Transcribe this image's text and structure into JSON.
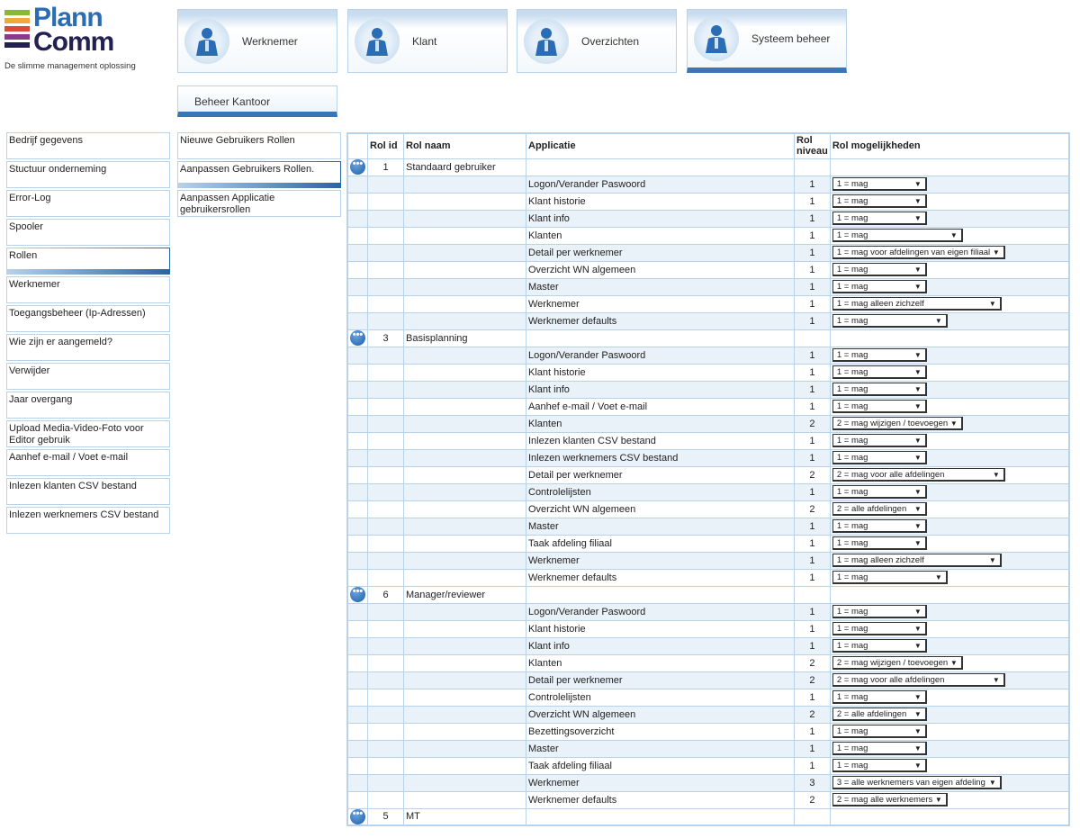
{
  "logo": {
    "text_top": "Plann",
    "text_bottom": "Comm",
    "tagline": "De slimme management oplossing",
    "colors": [
      "#8ab833",
      "#f2a640",
      "#d94a3a",
      "#8a3a8c",
      "#232052"
    ]
  },
  "nav": [
    {
      "label": "Werknemer",
      "icon": "employee-calculator-icon"
    },
    {
      "label": "Klant",
      "icon": "client-icon"
    },
    {
      "label": "Overzichten",
      "icon": "overview-icon"
    },
    {
      "label": "Systeem beheer",
      "icon": "system-key-icon",
      "selected": true
    }
  ],
  "subnav": {
    "label": "Beheer Kantoor"
  },
  "menu_left": [
    {
      "label": "Bedrijf gegevens"
    },
    {
      "label": "Stuctuur onderneming"
    },
    {
      "label": "Error-Log"
    },
    {
      "label": "Spooler"
    },
    {
      "label": "Rollen",
      "selected": true
    },
    {
      "label": "Werknemer"
    },
    {
      "label": "Toegangsbeheer (Ip-Adressen)"
    },
    {
      "label": "Wie zijn er aangemeld?"
    },
    {
      "label": "Verwijder"
    },
    {
      "label": "Jaar overgang"
    },
    {
      "label": "Upload Media-Video-Foto voor Editor gebruik"
    },
    {
      "label": "Aanhef e-mail / Voet e-mail"
    },
    {
      "label": "Inlezen klanten CSV bestand"
    },
    {
      "label": "Inlezen werknemers CSV bestand"
    }
  ],
  "menu_sub": [
    {
      "label": "Nieuwe Gebruikers Rollen"
    },
    {
      "label": "Aanpassen Gebruikers Rollen.",
      "selected": true
    },
    {
      "label": "Aanpassen Applicatie gebruikersrollen"
    }
  ],
  "table": {
    "headers": {
      "id": "Rol id",
      "name": "Rol naam",
      "app": "Applicatie",
      "level": "Rol niveau",
      "options": "Rol mogelijkheden"
    },
    "accent": "#3a76b6",
    "groups": [
      {
        "id": "1",
        "name": "Standaard gebruiker",
        "rows": [
          [
            "Logon/Verander Paswoord",
            "1",
            "1 = mag"
          ],
          [
            "Klant historie",
            "1",
            "1 = mag"
          ],
          [
            "Klant info",
            "1",
            "1 = mag"
          ],
          [
            "Klanten",
            "1",
            "1 = mag"
          ],
          [
            "Detail per werknemer",
            "1",
            "1 = mag voor afdelingen van eigen filiaal"
          ],
          [
            "Overzicht WN algemeen",
            "1",
            "1 = mag"
          ],
          [
            "Master",
            "1",
            "1 = mag"
          ],
          [
            "Werknemer",
            "1",
            "1 = mag alleen zichzelf"
          ],
          [
            "Werknemer defaults",
            "1",
            "1 = mag"
          ]
        ]
      },
      {
        "id": "3",
        "name": "Basisplanning",
        "rows": [
          [
            "Logon/Verander Paswoord",
            "1",
            "1 = mag"
          ],
          [
            "Klant historie",
            "1",
            "1 = mag"
          ],
          [
            "Klant info",
            "1",
            "1 = mag"
          ],
          [
            "Aanhef e-mail / Voet e-mail",
            "1",
            "1 = mag"
          ],
          [
            "Klanten",
            "2",
            "2 = mag wijzigen / toevoegen"
          ],
          [
            "Inlezen klanten CSV bestand",
            "1",
            "1 = mag"
          ],
          [
            "Inlezen werknemers CSV bestand",
            "1",
            "1 = mag"
          ],
          [
            "Detail per werknemer",
            "2",
            "2 = mag voor alle afdelingen"
          ],
          [
            "Controlelijsten",
            "1",
            "1 = mag"
          ],
          [
            "Overzicht WN algemeen",
            "2",
            "2 = alle afdelingen"
          ],
          [
            "Master",
            "1",
            "1 = mag"
          ],
          [
            "Taak afdeling filiaal",
            "1",
            "1 = mag"
          ],
          [
            "Werknemer",
            "1",
            "1 = mag alleen zichzelf"
          ],
          [
            "Werknemer defaults",
            "1",
            "1 = mag"
          ]
        ]
      },
      {
        "id": "6",
        "name": "Manager/reviewer",
        "rows": [
          [
            "Logon/Verander Paswoord",
            "1",
            "1 = mag"
          ],
          [
            "Klant historie",
            "1",
            "1 = mag"
          ],
          [
            "Klant info",
            "1",
            "1 = mag"
          ],
          [
            "Klanten",
            "2",
            "2 = mag wijzigen / toevoegen"
          ],
          [
            "Detail per werknemer",
            "2",
            "2 = mag voor alle afdelingen"
          ],
          [
            "Controlelijsten",
            "1",
            "1 = mag"
          ],
          [
            "Overzicht WN algemeen",
            "2",
            "2 = alle afdelingen"
          ],
          [
            "Bezettingsoverzicht",
            "1",
            "1 = mag"
          ],
          [
            "Master",
            "1",
            "1 = mag"
          ],
          [
            "Taak afdeling filiaal",
            "1",
            "1 = mag"
          ],
          [
            "Werknemer",
            "3",
            "3 = alle werknemers van eigen afdeling"
          ],
          [
            "Werknemer defaults",
            "2",
            "2 = mag alle werknemers"
          ]
        ]
      },
      {
        "id": "5",
        "name": "MT",
        "rows": []
      }
    ]
  }
}
